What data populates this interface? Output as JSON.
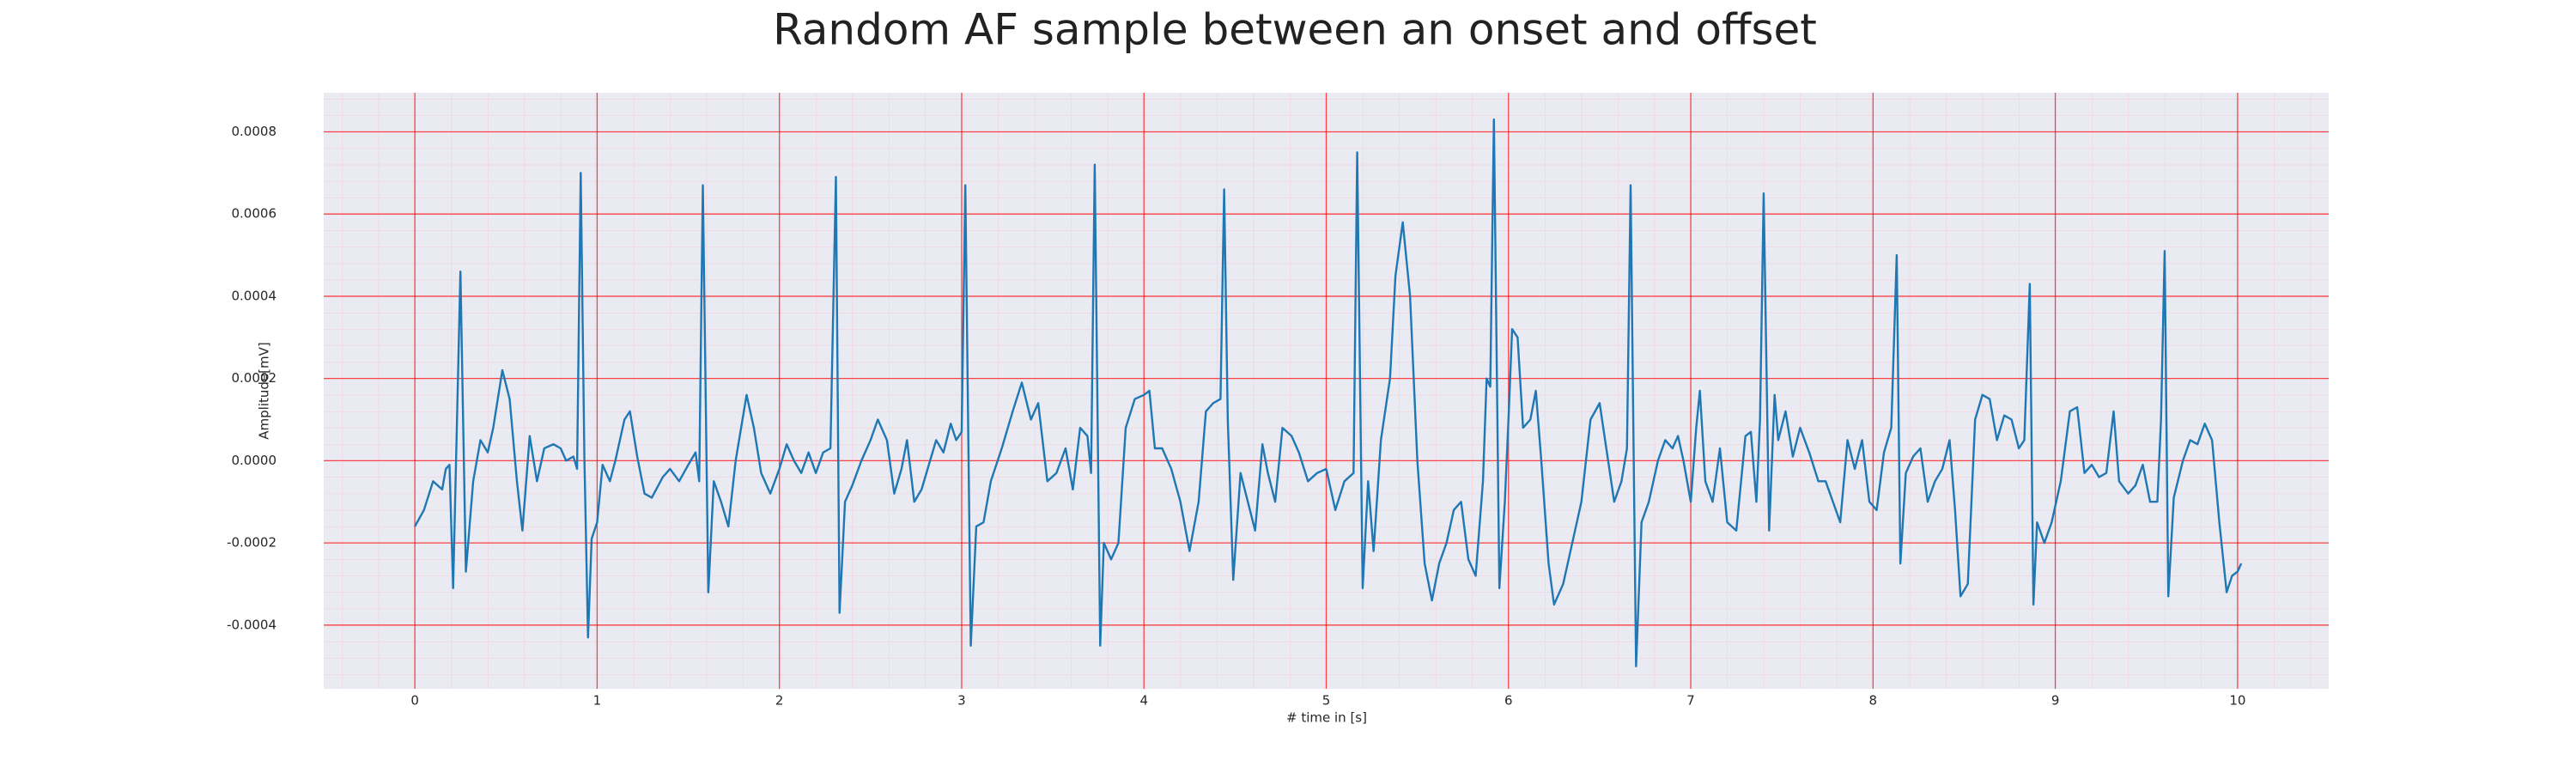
{
  "chart_data": {
    "type": "line",
    "title": "Random AF sample between an onset and offset",
    "xlabel": "# time in [s]",
    "ylabel": "Amplitude[mV]",
    "color": "#1f77b4",
    "grid": true,
    "xlim": [
      -0.5,
      10.5
    ],
    "ylim": [
      -0.000555,
      0.000895
    ],
    "xticks": [
      0,
      1,
      2,
      3,
      4,
      5,
      6,
      7,
      8,
      9,
      10
    ],
    "yticks": [
      -0.0004,
      -0.0002,
      {
        "value": 0,
        "label": "0.0000"
      },
      0.0002,
      0.0004,
      0.0006,
      0.0008
    ],
    "x": [
      0,
      0.05,
      0.1,
      0.15,
      0.17,
      0.19,
      0.21,
      0.25,
      0.28,
      0.32,
      0.36,
      0.4,
      0.43,
      0.48,
      0.52,
      0.56,
      0.59,
      0.63,
      0.67,
      0.71,
      0.76,
      0.8,
      0.83,
      0.87,
      0.89,
      0.91,
      0.93,
      0.95,
      0.97,
      1.0,
      1.03,
      1.07,
      1.1,
      1.15,
      1.18,
      1.22,
      1.26,
      1.3,
      1.36,
      1.4,
      1.45,
      1.5,
      1.54,
      1.56,
      1.58,
      1.61,
      1.64,
      1.68,
      1.72,
      1.76,
      1.82,
      1.86,
      1.9,
      1.95,
      2.0,
      2.04,
      2.08,
      2.12,
      2.16,
      2.2,
      2.24,
      2.28,
      2.31,
      2.33,
      2.36,
      2.4,
      2.45,
      2.5,
      2.54,
      2.59,
      2.63,
      2.67,
      2.7,
      2.74,
      2.78,
      2.82,
      2.86,
      2.9,
      2.94,
      2.97,
      3.0,
      3.02,
      3.05,
      3.08,
      3.12,
      3.16,
      3.22,
      3.28,
      3.33,
      3.38,
      3.42,
      3.47,
      3.52,
      3.57,
      3.61,
      3.65,
      3.69,
      3.71,
      3.73,
      3.76,
      3.78,
      3.82,
      3.86,
      3.9,
      3.95,
      4.0,
      4.03,
      4.06,
      4.1,
      4.15,
      4.2,
      4.25,
      4.3,
      4.34,
      4.38,
      4.42,
      4.44,
      4.46,
      4.49,
      4.53,
      4.57,
      4.61,
      4.65,
      4.68,
      4.72,
      4.76,
      4.81,
      4.85,
      4.9,
      4.95,
      5.0,
      5.05,
      5.1,
      5.15,
      5.17,
      5.2,
      5.23,
      5.26,
      5.3,
      5.35,
      5.38,
      5.42,
      5.46,
      5.5,
      5.54,
      5.58,
      5.62,
      5.66,
      5.7,
      5.74,
      5.78,
      5.82,
      5.86,
      5.88,
      5.9,
      5.92,
      5.95,
      5.98,
      6.0,
      6.02,
      6.05,
      6.08,
      6.12,
      6.15,
      6.18,
      6.22,
      6.25,
      6.3,
      6.35,
      6.4,
      6.45,
      6.5,
      6.53,
      6.58,
      6.62,
      6.65,
      6.67,
      6.7,
      6.73,
      6.77,
      6.82,
      6.86,
      6.9,
      6.93,
      6.96,
      7.0,
      7.03,
      7.05,
      7.08,
      7.12,
      7.16,
      7.2,
      7.25,
      7.3,
      7.33,
      7.36,
      7.38,
      7.4,
      7.43,
      7.46,
      7.48,
      7.52,
      7.56,
      7.6,
      7.65,
      7.7,
      7.74,
      7.78,
      7.82,
      7.86,
      7.9,
      7.94,
      7.98,
      8.02,
      8.06,
      8.1,
      8.13,
      8.15,
      8.18,
      8.22,
      8.26,
      8.3,
      8.34,
      8.38,
      8.42,
      8.45,
      8.48,
      8.52,
      8.56,
      8.6,
      8.64,
      8.68,
      8.72,
      8.76,
      8.8,
      8.83,
      8.86,
      8.88,
      8.9,
      8.94,
      8.98,
      9.03,
      9.08,
      9.12,
      9.16,
      9.2,
      9.24,
      9.28,
      9.32,
      9.35,
      9.4,
      9.44,
      9.48,
      9.52,
      9.56,
      9.58,
      9.6,
      9.62,
      9.65,
      9.7,
      9.74,
      9.78,
      9.82,
      9.86,
      9.9,
      9.94,
      9.97,
      10.0,
      10.02
    ],
    "values": [
      -0.00016,
      -0.00012,
      -5e-05,
      -7e-05,
      -2e-05,
      -1e-05,
      -0.00031,
      0.00046,
      -0.00027,
      -5e-05,
      5e-05,
      2e-05,
      8e-05,
      0.00022,
      0.00015,
      -5e-05,
      -0.00017,
      6e-05,
      -5e-05,
      3e-05,
      4e-05,
      3e-05,
      0,
      1e-05,
      -2e-05,
      0.0007,
      1e-05,
      -0.00043,
      -0.00019,
      -0.00015,
      -1e-05,
      -5e-05,
      0,
      0.0001,
      0.00012,
      1e-05,
      -8e-05,
      -9e-05,
      -4e-05,
      -2e-05,
      -5e-05,
      -1e-05,
      2e-05,
      -5e-05,
      0.00067,
      -0.00032,
      -5e-05,
      -0.0001,
      -0.00016,
      0,
      0.00016,
      8e-05,
      -3e-05,
      -8e-05,
      -2e-05,
      4e-05,
      0,
      -3e-05,
      2e-05,
      -3e-05,
      2e-05,
      3e-05,
      0.00069,
      -0.00037,
      -0.0001,
      -6e-05,
      0,
      5e-05,
      0.0001,
      5e-05,
      -8e-05,
      -2e-05,
      5e-05,
      -0.0001,
      -7e-05,
      -1e-05,
      5e-05,
      2e-05,
      9e-05,
      5e-05,
      7e-05,
      0.00067,
      -0.00045,
      -0.00016,
      -0.00015,
      -5e-05,
      3e-05,
      0.00012,
      0.00019,
      0.0001,
      0.00014,
      -5e-05,
      -3e-05,
      3e-05,
      -7e-05,
      8e-05,
      6e-05,
      -3e-05,
      0.00072,
      -0.00045,
      -0.0002,
      -0.00024,
      -0.0002,
      8e-05,
      0.00015,
      0.00016,
      0.00017,
      3e-05,
      3e-05,
      -2e-05,
      -0.0001,
      -0.00022,
      -0.0001,
      0.00012,
      0.00014,
      0.00015,
      0.00066,
      0.0001,
      -0.00029,
      -3e-05,
      -0.0001,
      -0.00017,
      4e-05,
      -3e-05,
      -0.0001,
      8e-05,
      6e-05,
      2e-05,
      -5e-05,
      -3e-05,
      -2e-05,
      -0.00012,
      -5e-05,
      -3e-05,
      0.00075,
      -0.00031,
      -5e-05,
      -0.00022,
      5e-05,
      0.0002,
      0.00045,
      0.00058,
      0.0004,
      0,
      -0.00025,
      -0.00034,
      -0.00025,
      -0.0002,
      -0.00012,
      -0.0001,
      -0.00024,
      -0.00028,
      -5e-05,
      0.0002,
      0.00018,
      0.00083,
      -0.00031,
      -0.0001,
      0.0001,
      0.00032,
      0.0003,
      8e-05,
      0.0001,
      0.00017,
      0,
      -0.00025,
      -0.00035,
      -0.0003,
      -0.0002,
      -0.0001,
      0.0001,
      0.00014,
      5e-05,
      -0.0001,
      -5e-05,
      3e-05,
      0.00067,
      -0.0005,
      -0.00015,
      -0.0001,
      0,
      5e-05,
      3e-05,
      6e-05,
      0,
      -0.0001,
      8e-05,
      0.00017,
      -5e-05,
      -0.0001,
      3e-05,
      -0.00015,
      -0.00017,
      6e-05,
      7e-05,
      -0.0001,
      0.0001,
      0.00065,
      -0.00017,
      0.00016,
      5e-05,
      0.00012,
      1e-05,
      8e-05,
      2e-05,
      -5e-05,
      -5e-05,
      -0.0001,
      -0.00015,
      5e-05,
      -2e-05,
      5e-05,
      -0.0001,
      -0.00012,
      2e-05,
      8e-05,
      0.0005,
      -0.00025,
      -3e-05,
      1e-05,
      3e-05,
      -0.0001,
      -5e-05,
      -2e-05,
      5e-05,
      -0.00012,
      -0.00033,
      -0.0003,
      0.0001,
      0.00016,
      0.00015,
      5e-05,
      0.00011,
      0.0001,
      3e-05,
      5e-05,
      0.00043,
      -0.00035,
      -0.00015,
      -0.0002,
      -0.00015,
      -5e-05,
      0.00012,
      0.00013,
      -3e-05,
      -1e-05,
      -4e-05,
      -3e-05,
      0.00012,
      -5e-05,
      -8e-05,
      -6e-05,
      -1e-05,
      -0.0001,
      -0.0001,
      0.0001,
      0.00051,
      -0.00033,
      -9e-05,
      0,
      5e-05,
      4e-05,
      9e-05,
      5e-05,
      -0.00015,
      -0.00032,
      -0.00028,
      -0.00027,
      -0.00025
    ]
  }
}
